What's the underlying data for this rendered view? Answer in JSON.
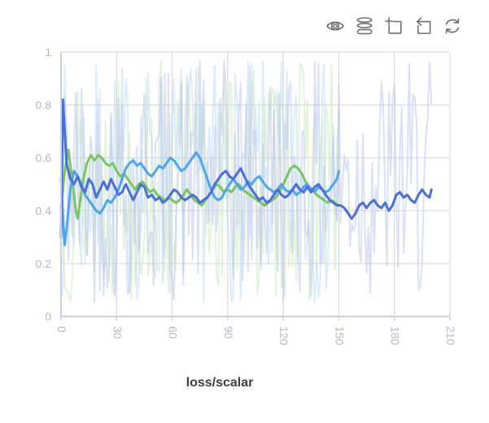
{
  "toolbar": {
    "icons": [
      "visibility-eye-icon",
      "runs-stack-icon",
      "zoom-select-icon",
      "zoom-reset-icon",
      "refresh-icon"
    ]
  },
  "colors": {
    "grid": "#d3d3d3",
    "axis": "#c9d1ee",
    "tick_label": "#b2b8c8",
    "icon": "#6a6f76",
    "title": "#3c3c3c"
  },
  "chart_data": {
    "type": "line",
    "title": "loss/scalar",
    "xlabel": "",
    "ylabel": "",
    "xlim": [
      0,
      210
    ],
    "ylim": [
      0,
      1
    ],
    "x_ticks": [
      0,
      30,
      60,
      90,
      120,
      150,
      180,
      210
    ],
    "y_ticks": [
      0,
      0.2,
      0.4,
      0.6,
      0.8,
      1
    ],
    "grid": true,
    "legend": "none",
    "series": [
      {
        "name": "run-green-smoothed",
        "color": "#7cc463",
        "width": 3,
        "points": [
          [
            0,
            0.41
          ],
          [
            2,
            0.55
          ],
          [
            4,
            0.63
          ],
          [
            6,
            0.52
          ],
          [
            8,
            0.4
          ],
          [
            9,
            0.37
          ],
          [
            10,
            0.42
          ],
          [
            12,
            0.52
          ],
          [
            14,
            0.58
          ],
          [
            16,
            0.61
          ],
          [
            18,
            0.59
          ],
          [
            20,
            0.61
          ],
          [
            22,
            0.6
          ],
          [
            24,
            0.58
          ],
          [
            26,
            0.57
          ],
          [
            28,
            0.58
          ],
          [
            30,
            0.55
          ],
          [
            32,
            0.53
          ],
          [
            34,
            0.54
          ],
          [
            36,
            0.52
          ],
          [
            38,
            0.5
          ],
          [
            40,
            0.48
          ],
          [
            42,
            0.5
          ],
          [
            44,
            0.51
          ],
          [
            46,
            0.49
          ],
          [
            48,
            0.47
          ],
          [
            50,
            0.48
          ],
          [
            52,
            0.46
          ],
          [
            54,
            0.45
          ],
          [
            56,
            0.44
          ],
          [
            58,
            0.45
          ],
          [
            60,
            0.44
          ],
          [
            62,
            0.43
          ],
          [
            64,
            0.44
          ],
          [
            66,
            0.46
          ],
          [
            68,
            0.48
          ],
          [
            70,
            0.46
          ],
          [
            72,
            0.44
          ],
          [
            74,
            0.43
          ],
          [
            76,
            0.42
          ],
          [
            78,
            0.44
          ],
          [
            80,
            0.46
          ],
          [
            82,
            0.48
          ],
          [
            84,
            0.5
          ],
          [
            86,
            0.49
          ],
          [
            88,
            0.47
          ],
          [
            90,
            0.48
          ],
          [
            92,
            0.47
          ],
          [
            94,
            0.49
          ],
          [
            96,
            0.5
          ],
          [
            98,
            0.48
          ],
          [
            100,
            0.47
          ],
          [
            102,
            0.46
          ],
          [
            104,
            0.45
          ],
          [
            106,
            0.44
          ],
          [
            108,
            0.43
          ],
          [
            110,
            0.42
          ],
          [
            112,
            0.43
          ],
          [
            114,
            0.44
          ],
          [
            116,
            0.45
          ],
          [
            118,
            0.47
          ],
          [
            120,
            0.5
          ],
          [
            122,
            0.53
          ],
          [
            124,
            0.56
          ],
          [
            126,
            0.57
          ],
          [
            128,
            0.56
          ],
          [
            130,
            0.54
          ],
          [
            132,
            0.51
          ],
          [
            134,
            0.49
          ],
          [
            136,
            0.48
          ],
          [
            138,
            0.46
          ],
          [
            140,
            0.45
          ],
          [
            142,
            0.44
          ],
          [
            144,
            0.43
          ],
          [
            146,
            0.44
          ],
          [
            148,
            0.43
          ],
          [
            150,
            0.42
          ]
        ]
      },
      {
        "name": "run-lightblue-smoothed",
        "color": "#4fa5ec",
        "width": 3,
        "points": [
          [
            0,
            0.52
          ],
          [
            1,
            0.38
          ],
          [
            2,
            0.27
          ],
          [
            3,
            0.33
          ],
          [
            5,
            0.48
          ],
          [
            7,
            0.55
          ],
          [
            9,
            0.53
          ],
          [
            11,
            0.5
          ],
          [
            13,
            0.46
          ],
          [
            15,
            0.44
          ],
          [
            17,
            0.42
          ],
          [
            19,
            0.4
          ],
          [
            21,
            0.39
          ],
          [
            23,
            0.41
          ],
          [
            25,
            0.44
          ],
          [
            27,
            0.43
          ],
          [
            29,
            0.45
          ],
          [
            31,
            0.48
          ],
          [
            33,
            0.52
          ],
          [
            35,
            0.56
          ],
          [
            37,
            0.58
          ],
          [
            39,
            0.59
          ],
          [
            41,
            0.57
          ],
          [
            43,
            0.58
          ],
          [
            45,
            0.56
          ],
          [
            47,
            0.54
          ],
          [
            49,
            0.53
          ],
          [
            51,
            0.55
          ],
          [
            53,
            0.57
          ],
          [
            55,
            0.56
          ],
          [
            57,
            0.58
          ],
          [
            59,
            0.6
          ],
          [
            61,
            0.59
          ],
          [
            63,
            0.57
          ],
          [
            65,
            0.55
          ],
          [
            67,
            0.56
          ],
          [
            69,
            0.58
          ],
          [
            71,
            0.6
          ],
          [
            73,
            0.62
          ],
          [
            75,
            0.6
          ],
          [
            77,
            0.56
          ],
          [
            79,
            0.52
          ],
          [
            81,
            0.48
          ],
          [
            83,
            0.45
          ],
          [
            85,
            0.44
          ],
          [
            87,
            0.45
          ],
          [
            89,
            0.48
          ],
          [
            91,
            0.5
          ],
          [
            93,
            0.52
          ],
          [
            95,
            0.5
          ],
          [
            97,
            0.48
          ],
          [
            99,
            0.49
          ],
          [
            101,
            0.51
          ],
          [
            103,
            0.5
          ],
          [
            105,
            0.52
          ],
          [
            107,
            0.53
          ],
          [
            109,
            0.51
          ],
          [
            111,
            0.49
          ],
          [
            113,
            0.48
          ],
          [
            115,
            0.47
          ],
          [
            117,
            0.48
          ],
          [
            119,
            0.5
          ],
          [
            121,
            0.48
          ],
          [
            123,
            0.47
          ],
          [
            125,
            0.48
          ],
          [
            127,
            0.46
          ],
          [
            129,
            0.47
          ],
          [
            131,
            0.49
          ],
          [
            133,
            0.5
          ],
          [
            135,
            0.48
          ],
          [
            137,
            0.47
          ],
          [
            139,
            0.49
          ],
          [
            141,
            0.48
          ],
          [
            143,
            0.47
          ],
          [
            145,
            0.48
          ],
          [
            147,
            0.5
          ],
          [
            149,
            0.52
          ],
          [
            150,
            0.55
          ]
        ]
      },
      {
        "name": "run-blue-smoothed",
        "color": "#4a6fd8",
        "width": 3,
        "points": [
          [
            0,
            0.3
          ],
          [
            1,
            0.82
          ],
          [
            2,
            0.7
          ],
          [
            3,
            0.58
          ],
          [
            5,
            0.52
          ],
          [
            7,
            0.5
          ],
          [
            9,
            0.53
          ],
          [
            11,
            0.49
          ],
          [
            13,
            0.47
          ],
          [
            15,
            0.52
          ],
          [
            17,
            0.5
          ],
          [
            19,
            0.45
          ],
          [
            21,
            0.48
          ],
          [
            23,
            0.51
          ],
          [
            25,
            0.48
          ],
          [
            27,
            0.52
          ],
          [
            29,
            0.49
          ],
          [
            31,
            0.46
          ],
          [
            33,
            0.47
          ],
          [
            35,
            0.5
          ],
          [
            37,
            0.47
          ],
          [
            39,
            0.44
          ],
          [
            41,
            0.47
          ],
          [
            43,
            0.5
          ],
          [
            45,
            0.49
          ],
          [
            47,
            0.45
          ],
          [
            49,
            0.46
          ],
          [
            51,
            0.44
          ],
          [
            53,
            0.45
          ],
          [
            55,
            0.43
          ],
          [
            57,
            0.44
          ],
          [
            59,
            0.46
          ],
          [
            61,
            0.48
          ],
          [
            63,
            0.47
          ],
          [
            65,
            0.45
          ],
          [
            67,
            0.44
          ],
          [
            69,
            0.45
          ],
          [
            71,
            0.46
          ],
          [
            73,
            0.45
          ],
          [
            75,
            0.43
          ],
          [
            77,
            0.44
          ],
          [
            79,
            0.45
          ],
          [
            81,
            0.47
          ],
          [
            83,
            0.5
          ],
          [
            85,
            0.52
          ],
          [
            87,
            0.54
          ],
          [
            89,
            0.55
          ],
          [
            91,
            0.53
          ],
          [
            93,
            0.52
          ],
          [
            95,
            0.54
          ],
          [
            97,
            0.56
          ],
          [
            99,
            0.53
          ],
          [
            101,
            0.5
          ],
          [
            103,
            0.48
          ],
          [
            105,
            0.46
          ],
          [
            107,
            0.44
          ],
          [
            109,
            0.45
          ],
          [
            111,
            0.43
          ],
          [
            113,
            0.44
          ],
          [
            115,
            0.46
          ],
          [
            117,
            0.48
          ],
          [
            119,
            0.46
          ],
          [
            121,
            0.45
          ],
          [
            123,
            0.46
          ],
          [
            125,
            0.48
          ],
          [
            127,
            0.5
          ],
          [
            129,
            0.48
          ],
          [
            131,
            0.47
          ],
          [
            133,
            0.49
          ],
          [
            135,
            0.47
          ],
          [
            137,
            0.49
          ],
          [
            139,
            0.5
          ],
          [
            141,
            0.48
          ],
          [
            143,
            0.46
          ],
          [
            145,
            0.44
          ],
          [
            147,
            0.43
          ],
          [
            149,
            0.42
          ],
          [
            151,
            0.42
          ],
          [
            153,
            0.41
          ],
          [
            155,
            0.39
          ],
          [
            157,
            0.37
          ],
          [
            159,
            0.39
          ],
          [
            161,
            0.42
          ],
          [
            163,
            0.43
          ],
          [
            165,
            0.41
          ],
          [
            167,
            0.43
          ],
          [
            169,
            0.44
          ],
          [
            171,
            0.42
          ],
          [
            173,
            0.41
          ],
          [
            175,
            0.43
          ],
          [
            177,
            0.4
          ],
          [
            179,
            0.42
          ],
          [
            181,
            0.46
          ],
          [
            183,
            0.47
          ],
          [
            185,
            0.45
          ],
          [
            187,
            0.46
          ],
          [
            189,
            0.44
          ],
          [
            191,
            0.43
          ],
          [
            193,
            0.46
          ],
          [
            195,
            0.48
          ],
          [
            197,
            0.46
          ],
          [
            199,
            0.45
          ],
          [
            200,
            0.48
          ]
        ]
      }
    ],
    "raw_series": [
      {
        "name": "run-lightblue-raw",
        "color": "#b0d7f4",
        "opacity": 0.45,
        "seed": 7,
        "x_start": 0,
        "x_end": 150,
        "step": 1,
        "min": 0.05,
        "max": 0.97
      },
      {
        "name": "run-green-raw",
        "color": "#c8e7ba",
        "opacity": 0.5,
        "seed": 13,
        "x_start": 0,
        "x_end": 150,
        "step": 1,
        "min": 0.05,
        "max": 0.97
      },
      {
        "name": "run-blue-raw",
        "color": "#b7c2f2",
        "opacity": 0.5,
        "seed": 42,
        "x_start": 0,
        "x_end": 200,
        "step": 1,
        "min": 0.05,
        "max": 0.97
      }
    ]
  }
}
